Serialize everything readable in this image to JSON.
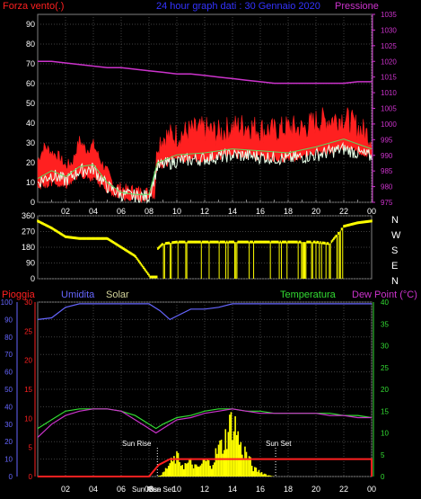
{
  "chart_data": [
    {
      "type": "line",
      "panel": "top",
      "title": "24 hour graph dati : 30 Gennaio 2020",
      "legend": [
        {
          "label": "Forza vento(.)",
          "color": "#ff2020"
        },
        {
          "label": "Pressione",
          "color": "#cc33cc"
        }
      ],
      "left_axis": {
        "ticks": [
          "0",
          "10",
          "20",
          "30",
          "40",
          "50",
          "60",
          "70",
          "80",
          "90"
        ],
        "range": [
          0,
          95
        ]
      },
      "right_axis": {
        "ticks": [
          "975",
          "980",
          "985",
          "990",
          "995",
          "1000",
          "1005",
          "1010",
          "1015",
          "1020",
          "1025",
          "1030",
          "1035"
        ],
        "range": [
          975,
          1035
        ]
      },
      "x_ticks": [
        "02",
        "04",
        "06",
        "08",
        "10",
        "12",
        "14",
        "16",
        "18",
        "20",
        "22",
        "00"
      ],
      "series": [
        {
          "name": "Forza vento(.)",
          "color": "#ff2020",
          "axis": "left",
          "x": [
            0,
            0.5,
            1,
            1.5,
            2,
            2.5,
            3,
            3.5,
            4,
            4.5,
            5,
            5.5,
            6,
            6.5,
            7,
            7.5,
            8,
            8.2,
            8.4,
            8.6,
            9,
            10,
            11,
            12,
            13,
            14,
            15,
            16,
            17,
            18,
            19,
            20,
            21,
            22,
            23,
            24
          ],
          "y": [
            20,
            27,
            24,
            22,
            17,
            19,
            30,
            25,
            28,
            20,
            14,
            7,
            6,
            5,
            5,
            4,
            4,
            4,
            2,
            27,
            30,
            31,
            33,
            34,
            32,
            35,
            36,
            34,
            33,
            35,
            34,
            38,
            39,
            40,
            35,
            30
          ]
        },
        {
          "name": "Forza vento(.) min",
          "color": "#ff2020",
          "axis": "left",
          "x": [
            0,
            1,
            2,
            3,
            4,
            5,
            6,
            7,
            8,
            8.6,
            10,
            12,
            14,
            16,
            18,
            20,
            22,
            24
          ],
          "y": [
            8,
            10,
            8,
            14,
            12,
            6,
            3,
            2,
            2,
            18,
            22,
            22,
            24,
            23,
            22,
            25,
            28,
            24
          ]
        },
        {
          "name": "Forza vento(.) smooth",
          "color": "#5dd75d",
          "axis": "left",
          "x": [
            0,
            1,
            2,
            3,
            4,
            5,
            6,
            7,
            8,
            8.6,
            10,
            12,
            14,
            16,
            18,
            20,
            22,
            24
          ],
          "y": [
            12,
            16,
            13,
            18,
            19,
            10,
            5,
            4,
            4,
            20,
            24,
            25,
            27,
            26,
            25,
            28,
            32,
            27
          ]
        },
        {
          "name": "Forza vento(.) gust",
          "color": "#e8ffe8",
          "axis": "left",
          "x": [
            0,
            1,
            2,
            3,
            4,
            5,
            6,
            7,
            8,
            8.6,
            10,
            12,
            14,
            16,
            18,
            20,
            22,
            24
          ],
          "y": [
            10,
            14,
            11,
            16,
            17,
            8,
            4,
            3,
            3,
            18,
            21,
            22,
            24,
            23,
            22,
            24,
            27,
            23
          ]
        },
        {
          "name": "Pressione",
          "color": "#cc33cc",
          "axis": "right",
          "x": [
            0,
            1,
            2,
            3,
            4,
            5,
            6,
            7,
            8,
            9,
            10,
            11,
            12,
            13,
            14,
            15,
            16,
            17,
            18,
            19,
            20,
            21,
            22,
            23,
            24
          ],
          "y": [
            1020,
            1020,
            1019.5,
            1019,
            1018.5,
            1018,
            1018,
            1017.5,
            1017,
            1016.5,
            1016,
            1016,
            1015.5,
            1015,
            1014.5,
            1014,
            1013.5,
            1013,
            1013,
            1013,
            1013,
            1013,
            1013,
            1013.5,
            1013.5
          ]
        }
      ]
    },
    {
      "type": "bar",
      "panel": "direction",
      "right_labels": [
        "N",
        "W",
        "S",
        "E",
        "N"
      ],
      "left_axis": {
        "ticks": [
          "0",
          "90",
          "180",
          "270",
          "360"
        ],
        "range": [
          0,
          360
        ]
      },
      "x_ticks": [],
      "series": [
        {
          "name": "Direzione",
          "color": "#ffff00",
          "x": [
            0,
            1,
            2,
            3,
            4,
            5,
            6,
            7,
            8,
            8.6,
            9,
            10,
            11,
            12,
            13,
            14,
            15,
            16,
            17,
            18,
            19,
            20,
            21,
            22,
            23,
            24
          ],
          "y": [
            330,
            290,
            240,
            230,
            230,
            230,
            180,
            130,
            20,
            170,
            200,
            210,
            210,
            210,
            210,
            210,
            210,
            210,
            210,
            210,
            210,
            210,
            200,
            300,
            320,
            330
          ]
        }
      ]
    },
    {
      "type": "line",
      "panel": "bottom",
      "legend": [
        {
          "label": "Pioggia",
          "color": "#ff2020"
        },
        {
          "label": "Umidita",
          "color": "#6666ff"
        },
        {
          "label": "Solar",
          "color": "#d4d49a"
        },
        {
          "label": "Temperatura",
          "color": "#33dd33"
        },
        {
          "label": "Dew Point (°C)",
          "color": "#cc33cc"
        }
      ],
      "left_axis_outer": {
        "ticks": [
          "0",
          "10",
          "20",
          "30",
          "40",
          "50",
          "60",
          "70",
          "80",
          "90",
          "100"
        ],
        "range": [
          0,
          100
        ],
        "color": "#6666ff"
      },
      "left_axis_inner": {
        "ticks": [
          "0",
          "5",
          "10",
          "15",
          "20",
          "25",
          "30"
        ],
        "range": [
          0,
          30
        ],
        "color": "#ff2020"
      },
      "right_axis": {
        "ticks": [
          "0",
          "5",
          "10",
          "15",
          "20",
          "25",
          "30",
          "35",
          "40"
        ],
        "range": [
          0,
          40
        ],
        "color": "#33dd33"
      },
      "x_ticks": [
        "02",
        "04",
        "06",
        "08",
        "10",
        "12",
        "14",
        "16",
        "18",
        "20",
        "22",
        "00"
      ],
      "annotations": [
        "Sun Rise",
        "Sun Set",
        "Sun Rise",
        "Sun Set"
      ],
      "series": [
        {
          "name": "Umidita",
          "color": "#6666ff",
          "axis": "outer",
          "x": [
            0,
            1,
            2,
            3,
            4,
            5,
            6,
            7,
            8,
            8.8,
            9.5,
            10,
            11,
            12,
            13,
            14,
            15,
            16,
            17,
            18,
            19,
            20,
            21,
            22,
            23,
            24
          ],
          "y": [
            90,
            91,
            97,
            99,
            99,
            99,
            99,
            99,
            99,
            95,
            90,
            92,
            96,
            96,
            97,
            99,
            99,
            99,
            99,
            99,
            99,
            99,
            99,
            99,
            99,
            99
          ]
        },
        {
          "name": "Temperatura",
          "color": "#33dd33",
          "axis": "right",
          "x": [
            0,
            1,
            2,
            3,
            4,
            5,
            6,
            7,
            8,
            8.5,
            9,
            10,
            11,
            12,
            13,
            14,
            15,
            16,
            17,
            18,
            19,
            20,
            21,
            22,
            23,
            24
          ],
          "y": [
            11,
            13,
            15,
            15.5,
            15.5,
            15.5,
            15,
            14,
            12,
            11,
            12,
            13.5,
            14,
            15,
            15.5,
            15.5,
            15,
            15,
            14.5,
            14.5,
            14.5,
            14.5,
            14.5,
            14,
            14,
            13.5
          ]
        },
        {
          "name": "Dew Point (°C)",
          "color": "#cc33cc",
          "axis": "right",
          "x": [
            0,
            1,
            2,
            3,
            4,
            5,
            6,
            7,
            8,
            8.5,
            9,
            10,
            11,
            12,
            13,
            14,
            15,
            16,
            17,
            18,
            19,
            20,
            21,
            22,
            23,
            24
          ],
          "y": [
            9,
            12,
            14,
            15,
            15.5,
            15.5,
            15,
            13,
            11,
            10,
            11,
            13,
            13.5,
            14.5,
            15,
            15.5,
            15,
            14.5,
            14.5,
            14.5,
            14.5,
            14.5,
            14,
            14,
            13.5,
            13.5
          ]
        },
        {
          "name": "Solar",
          "color": "#ffff00",
          "axis": "outer",
          "x": [
            0,
            8.6,
            9,
            9.5,
            10,
            10.5,
            11,
            11.5,
            12,
            12.5,
            13,
            13.3,
            13.6,
            14,
            14.3,
            14.6,
            15,
            15.5,
            16,
            16.5,
            17,
            24
          ],
          "y": [
            0,
            0,
            2,
            8,
            12,
            7,
            9,
            5,
            10,
            8,
            18,
            20,
            27,
            36,
            30,
            18,
            15,
            5,
            3,
            1,
            0,
            0
          ]
        },
        {
          "name": "Pioggia",
          "color": "#ff2020",
          "axis": "inner",
          "x": [
            0,
            8,
            8.7,
            9.5,
            24
          ],
          "y": [
            0,
            0,
            2,
            3,
            3
          ]
        }
      ]
    }
  ],
  "titles": {
    "top_left": "Forza vento(.)",
    "top_center": "24 hour graph dati : 30 Gennaio 2020",
    "top_right": "Pressione",
    "bottom_rain": "Pioggia",
    "bottom_hum": "Umidita",
    "bottom_solar": "Solar",
    "bottom_temp": "Temperatura",
    "bottom_dew": "Dew Point (°C)",
    "sunrise": "Sun Rise",
    "sunset": "Sun Set",
    "sunrise_short": "Sun Rise",
    "sunset_short": "Sun Set"
  },
  "colors": {
    "background": "#000000",
    "grid": "#404040",
    "axis": "#808080",
    "text": "#ffffff"
  }
}
